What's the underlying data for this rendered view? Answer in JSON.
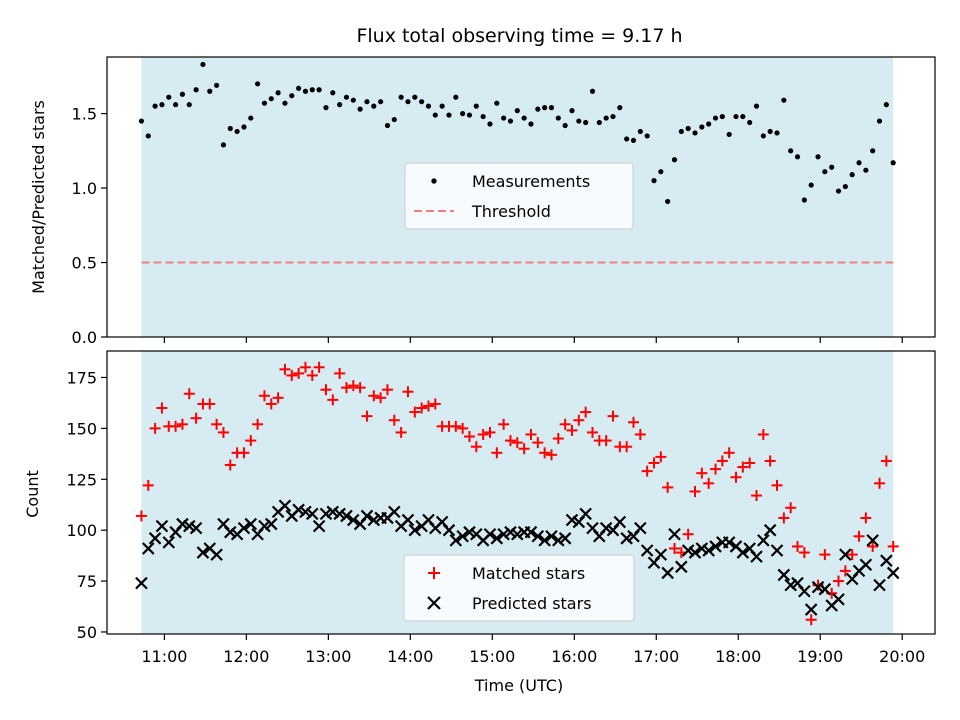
{
  "chart_data": {
    "type": "scatter",
    "title": "Flux total observing time = 9.17 h",
    "xlabel": "Time (UTC)",
    "x_ticks": [
      "11:00",
      "12:00",
      "13:00",
      "14:00",
      "15:00",
      "16:00",
      "17:00",
      "18:00",
      "19:00",
      "20:00"
    ],
    "xlim_hours": [
      10.3,
      20.4
    ],
    "shaded_interval_hours": [
      10.72,
      19.89
    ],
    "colors": {
      "shade": "#add8e6",
      "matched": "#ff0000",
      "predicted": "#000000",
      "measurement": "#000000",
      "threshold": "#f08080"
    },
    "panels": [
      {
        "ylabel": "Matched/Predicted stars",
        "ylim": [
          0,
          1.88
        ],
        "yticks": [
          "0.0",
          "0.5",
          "1.0",
          "1.5"
        ],
        "threshold": 0.5,
        "legend": [
          "Measurements",
          "Threshold"
        ],
        "legend_loc": "center",
        "series": [
          {
            "name": "Measurements",
            "marker": "dot",
            "values": [
              1.45,
              1.35,
              1.55,
              1.56,
              1.61,
              1.56,
              1.63,
              1.56,
              1.66,
              1.83,
              1.65,
              1.69,
              1.29,
              1.4,
              1.38,
              1.41,
              1.47,
              1.7,
              1.57,
              1.6,
              1.64,
              1.57,
              1.62,
              1.67,
              1.65,
              1.66,
              1.66,
              1.54,
              1.64,
              1.56,
              1.61,
              1.59,
              1.53,
              1.58,
              1.55,
              1.58,
              1.42,
              1.46,
              1.61,
              1.58,
              1.61,
              1.58,
              1.55,
              1.49,
              1.55,
              1.49,
              1.61,
              1.5,
              1.49,
              1.55,
              1.48,
              1.43,
              1.57,
              1.47,
              1.45,
              1.52,
              1.47,
              1.43,
              1.53,
              1.54,
              1.54,
              1.47,
              1.42,
              1.52,
              1.45,
              1.44,
              1.65,
              1.44,
              1.47,
              1.48,
              1.54,
              1.33,
              1.32,
              1.38,
              1.35,
              1.05,
              1.11,
              0.91,
              1.19,
              1.38,
              1.4,
              1.37,
              1.41,
              1.43,
              1.47,
              1.48,
              1.36,
              1.48,
              1.48,
              1.44,
              1.55,
              1.35,
              1.38,
              1.37,
              1.59,
              1.25,
              1.21,
              0.92,
              1.02,
              1.21,
              1.11,
              1.14,
              0.98,
              1.01,
              1.09,
              1.17,
              1.12,
              1.25,
              1.45,
              1.56,
              1.17
            ]
          }
        ]
      },
      {
        "ylabel": "Count",
        "ylim": [
          49,
          188
        ],
        "yticks": [
          "50",
          "75",
          "100",
          "125",
          "150",
          "175"
        ],
        "legend": [
          "Matched stars",
          "Predicted stars"
        ],
        "legend_loc": "lower center",
        "series": [
          {
            "name": "Matched stars",
            "marker": "plus",
            "values": [
              107,
              122,
              150,
              160,
              151,
              151,
              152,
              167,
              155,
              162,
              162,
              152,
              148,
              132,
              138,
              138,
              144,
              152,
              166,
              162,
              165,
              179,
              176,
              177,
              180,
              176,
              180,
              169,
              164,
              177,
              170,
              171,
              170,
              156,
              166,
              165,
              169,
              154,
              148,
              168,
              158,
              160,
              161,
              162,
              151,
              151,
              151,
              150,
              146,
              141,
              147,
              148,
              138,
              152,
              144,
              143,
              140,
              147,
              143,
              138,
              137,
              145,
              152,
              149,
              154,
              158,
              148,
              144,
              144,
              156,
              141,
              141,
              153,
              147,
              129,
              133,
              136,
              121,
              91,
              89,
              98,
              119,
              128,
              123,
              130,
              134,
              138,
              126,
              131,
              133,
              117,
              147,
              134,
              122,
              106,
              111,
              92,
              89,
              56,
              73,
              88,
              69,
              75,
              80,
              88,
              97,
              106,
              92,
              123,
              134,
              92
            ]
          },
          {
            "name": "Predicted stars",
            "marker": "x",
            "values": [
              74,
              91,
              96,
              102,
              94,
              99,
              103,
              102,
              101,
              89,
              91,
              88,
              103,
              99,
              98,
              101,
              103,
              98,
              102,
              103,
              109,
              112,
              107,
              110,
              109,
              108,
              102,
              108,
              109,
              108,
              107,
              105,
              103,
              107,
              105,
              106,
              106,
              109,
              102,
              105,
              100,
              102,
              105,
              101,
              104,
              100,
              95,
              97,
              99,
              98,
              95,
              98,
              96,
              98,
              99,
              98,
              99,
              99,
              97,
              95,
              97,
              95,
              96,
              105,
              104,
              108,
              101,
              97,
              101,
              100,
              104,
              96,
              97,
              101,
              90,
              84,
              88,
              79,
              98,
              82,
              90,
              89,
              91,
              90,
              92,
              94,
              94,
              92,
              89,
              91,
              87,
              95,
              100,
              90,
              78,
              73,
              74,
              70,
              61,
              72,
              71,
              63,
              66,
              88,
              76,
              80,
              83,
              95,
              73,
              85,
              79
            ]
          }
        ]
      }
    ]
  }
}
